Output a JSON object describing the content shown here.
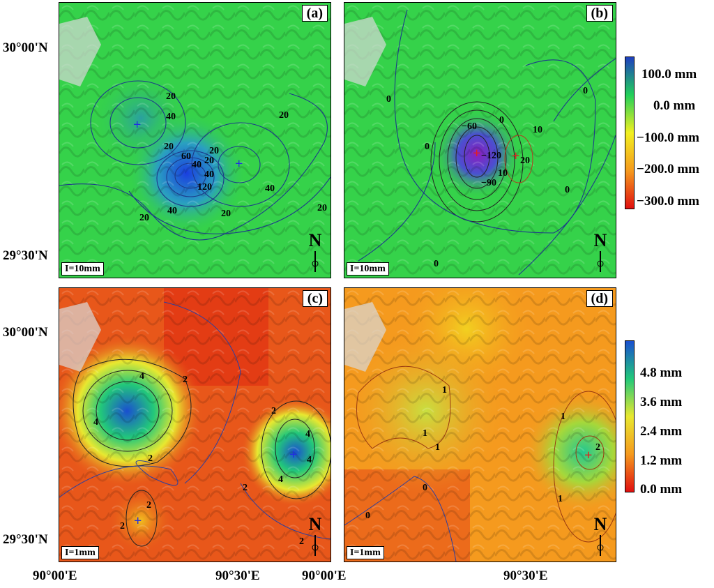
{
  "panels": {
    "a": {
      "label": "(a)",
      "scale": "I=10mm",
      "north": "N"
    },
    "b": {
      "label": "(b)",
      "scale": "I=10mm",
      "north": "N"
    },
    "c": {
      "label": "(c)",
      "scale": "I=1mm",
      "north": "N"
    },
    "d": {
      "label": "(d)",
      "scale": "I=1mm",
      "north": "N"
    }
  },
  "axes": {
    "lat_top": "30°00'N",
    "lat_bottom": "29°30'N",
    "lon_left": "90°00'E",
    "lon_mid": "90°30'E",
    "lon_right": "90°00'E"
  },
  "colorbar_top": {
    "labels": [
      "100.0 mm",
      "0.0 mm",
      "−100.0 mm",
      "−200.0 mm",
      "−300.0 mm"
    ],
    "colors": [
      "#1f3fbf",
      "#22d05a",
      "#f2f021",
      "#f59a1e",
      "#e01010"
    ]
  },
  "colorbar_bottom": {
    "labels": [
      "4.8 mm",
      "3.6 mm",
      "2.4 mm",
      "1.2 mm",
      "0.0 mm"
    ],
    "colors": [
      "#1a4fd0",
      "#22c87a",
      "#e8e830",
      "#f59a1e",
      "#e01010"
    ]
  },
  "contour_labels": {
    "a": [
      "40",
      "20",
      "20",
      "20",
      "20",
      "60",
      "20",
      "40",
      "40",
      "120",
      "40",
      "20",
      "40",
      "20",
      "20"
    ],
    "b": [
      "0",
      "0",
      "0",
      "−60",
      "0",
      "10",
      "−120",
      "20",
      "10",
      "−90",
      "0",
      "0"
    ],
    "c": [
      "4",
      "2",
      "4",
      "2",
      "4",
      "2",
      "4",
      "2",
      "2",
      "2",
      "4",
      "2"
    ],
    "d": [
      "1",
      "1",
      "1",
      "0",
      "0",
      "1",
      "2",
      "1"
    ]
  },
  "markers": {
    "a": [
      "+",
      "+"
    ],
    "b": [
      "+",
      "+"
    ],
    "c": [
      "+",
      "+"
    ],
    "d": [
      "+"
    ]
  }
}
